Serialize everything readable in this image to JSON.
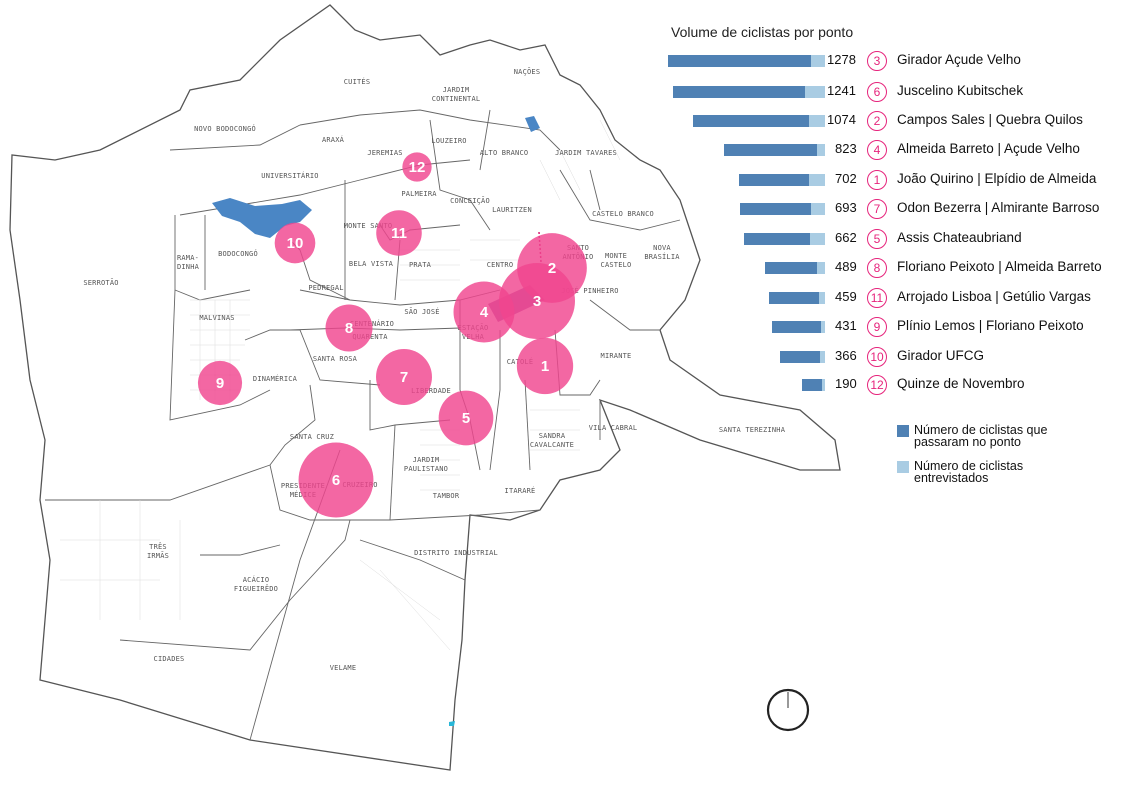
{
  "legend": {
    "title": "Volume de ciclistas por ponto",
    "key_passed": "Número de ciclistas que passaram no ponto",
    "key_interviewed": "Número de ciclistas entrevistados",
    "colors": {
      "passed": "#4f81b4",
      "interviewed": "#a9cce3",
      "points": "#f0458f",
      "water": "#4a86c5"
    }
  },
  "points": [
    {
      "number": "3",
      "name": "Girador Açude Velho",
      "total": 1278,
      "interviewed_fraction": 0.09
    },
    {
      "number": "6",
      "name": "Juscelino Kubitschek",
      "total": 1241,
      "interviewed_fraction": 0.13
    },
    {
      "number": "2",
      "name": "Campos Sales | Quebra Quilos",
      "total": 1074,
      "interviewed_fraction": 0.12
    },
    {
      "number": "4",
      "name": "Almeida Barreto | Açude Velho",
      "total": 823,
      "interviewed_fraction": 0.08
    },
    {
      "number": "1",
      "name": "João Quirino | Elpídio de Almeida",
      "total": 702,
      "interviewed_fraction": 0.19
    },
    {
      "number": "7",
      "name": "Odon Bezerra | Almirante Barroso",
      "total": 693,
      "interviewed_fraction": 0.17
    },
    {
      "number": "5",
      "name": "Assis Chateaubriand",
      "total": 662,
      "interviewed_fraction": 0.19
    },
    {
      "number": "8",
      "name": "Floriano Peixoto | Almeida Barreto",
      "total": 489,
      "interviewed_fraction": 0.14
    },
    {
      "number": "11",
      "name": "Arrojado Lisboa | Getúlio Vargas",
      "total": 459,
      "interviewed_fraction": 0.11
    },
    {
      "number": "9",
      "name": "Plínio Lemos | Floriano Peixoto",
      "total": 431,
      "interviewed_fraction": 0.07
    },
    {
      "number": "10",
      "name": "Girador UFCG",
      "total": 366,
      "interviewed_fraction": 0.12
    },
    {
      "number": "12",
      "name": "Quinze de Novembro",
      "total": 190,
      "interviewed_fraction": 0.14
    }
  ],
  "map": {
    "neighborhoods": [
      "CUITÉS",
      "JARDIM CONTINENTAL",
      "NAÇÕES",
      "NOVO BODOCONGÓ",
      "ARAXÁ",
      "JEREMIAS",
      "LOUZEIRO",
      "ALTO BRANCO",
      "JARDIM TAVARES",
      "UNIVERSITÁRIO",
      "PALMEIRA",
      "CONCEIÇÃO",
      "LAURITZEN",
      "CASTELO BRANCO",
      "NOVA BRASÍLIA",
      "MONTE SANTO",
      "SANTO ANTÔNIO",
      "MONTE CASTELO",
      "RAMA-DINHA",
      "BODOCONGÓ",
      "BELA VISTA",
      "PRATA",
      "CENTRO",
      "SERROTÃO",
      "PEDREGAL",
      "JOSÉ PINHEIRO",
      "MALVINAS",
      "CENTENÁRIO",
      "SÃO JOSÉ",
      "ESTAÇÃO VELHA",
      "QUARENTA",
      "SANTA ROSA",
      "CATOLÉ",
      "MIRANTE",
      "DINAMÉRICA",
      "LIBERDADE",
      "SANDRA CAVALCANTE",
      "VILA CABRAL",
      "SANTA TEREZINHA",
      "SANTA CRUZ",
      "JARDIM PAULISTANO",
      "PRESIDENTE MÉDICE",
      "CRUZEIRO",
      "TAMBOR",
      "ITARARÉ",
      "TRÊS IRMÃS",
      "DISTRITO INDUSTRIAL",
      "ACÁCIO FIGUEIRÊDO",
      "CIDADES",
      "VELAME"
    ]
  }
}
